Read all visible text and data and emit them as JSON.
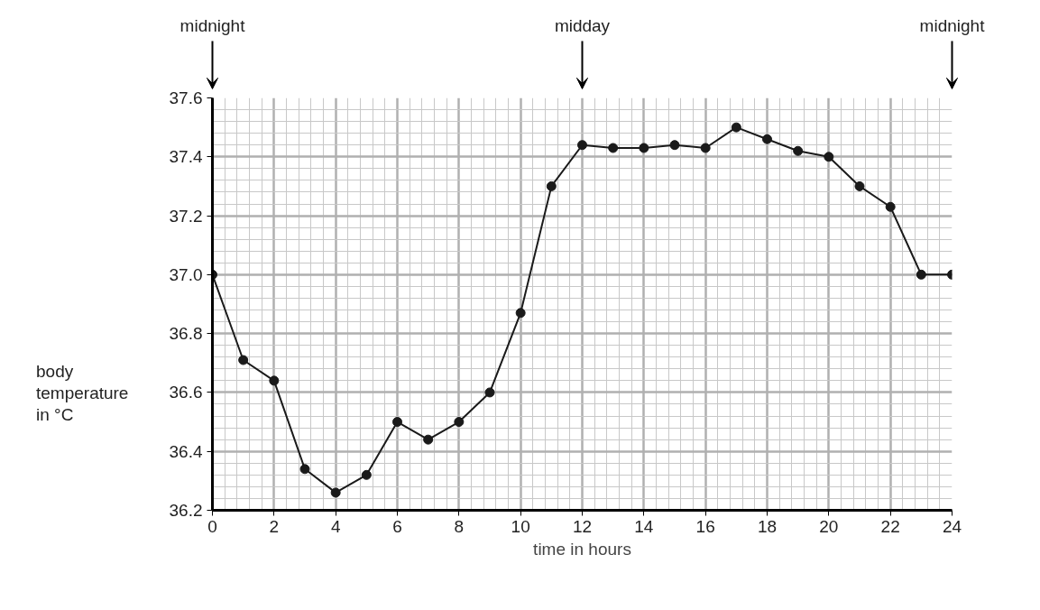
{
  "chart_data": {
    "type": "line",
    "xlabel": "time in hours",
    "ylabel": "body\ntemperature\nin °C",
    "x": [
      0,
      1,
      2,
      3,
      4,
      5,
      6,
      7,
      8,
      9,
      10,
      11,
      12,
      13,
      14,
      15,
      16,
      17,
      18,
      19,
      20,
      21,
      22,
      23,
      24
    ],
    "series": [
      {
        "color": "#1a1a1a",
        "values": [
          37.0,
          36.71,
          36.64,
          36.34,
          36.26,
          36.32,
          36.5,
          36.44,
          36.5,
          36.6,
          36.87,
          37.3,
          37.44,
          37.43,
          37.43,
          37.44,
          37.43,
          37.5,
          37.46,
          37.42,
          37.4,
          37.3,
          37.23,
          37.0,
          37.0
        ]
      }
    ],
    "xlim": [
      0,
      24
    ],
    "ylim": [
      36.2,
      37.6
    ],
    "xticks": [
      0,
      2,
      4,
      6,
      8,
      10,
      12,
      14,
      16,
      18,
      20,
      22,
      24
    ],
    "yticks": [
      {
        "value": 36.2,
        "label": "36.2"
      },
      {
        "value": 36.4,
        "label": "36.4"
      },
      {
        "value": 36.6,
        "label": "36.6"
      },
      {
        "value": 36.8,
        "label": "36.8"
      },
      {
        "value": 37.0,
        "label": "37.0"
      },
      {
        "value": 37.2,
        "label": "37.2"
      },
      {
        "value": 37.4,
        "label": "37.4"
      },
      {
        "value": 37.6,
        "label": "37.6"
      }
    ],
    "grid": true,
    "marker": "circle",
    "line_style": "solid",
    "annotations": [
      "midnight",
      "midday",
      "midnight"
    ]
  }
}
